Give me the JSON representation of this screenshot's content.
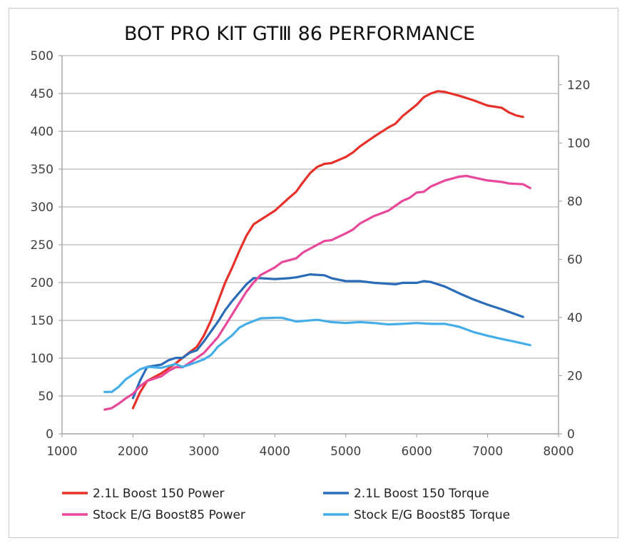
{
  "chart_data": {
    "type": "line",
    "title": "BOT PRO KIT GTⅢ 86 PERFORMANCE",
    "xlim": [
      1000,
      8000
    ],
    "xticks": [
      1000,
      2000,
      3000,
      4000,
      5000,
      6000,
      7000,
      8000
    ],
    "ylim_left": [
      0,
      500
    ],
    "yticks_left": [
      0,
      50,
      100,
      150,
      200,
      250,
      300,
      350,
      400,
      450,
      500
    ],
    "ylim_right": [
      0,
      130
    ],
    "yticks_right": [
      0,
      20,
      40,
      60,
      80,
      100,
      120
    ],
    "grid": true,
    "legend": "bottom",
    "series": [
      {
        "name": "2.1L Boost 150 Power",
        "axis": "left",
        "color": "#e8302a",
        "x": [
          2000,
          2100,
          2200,
          2400,
          2600,
          2800,
          2900,
          3000,
          3100,
          3200,
          3300,
          3400,
          3500,
          3600,
          3700,
          3800,
          4000,
          4200,
          4300,
          4400,
          4500,
          4600,
          4700,
          4800,
          5000,
          5100,
          5200,
          5400,
          5600,
          5700,
          5800,
          6000,
          6100,
          6200,
          6300,
          6400,
          6600,
          6800,
          7000,
          7200,
          7300,
          7400,
          7500
        ],
        "y": [
          34,
          55,
          70,
          80,
          93,
          108,
          115,
          130,
          150,
          175,
          200,
          220,
          242,
          262,
          277,
          283,
          295,
          312,
          320,
          333,
          345,
          353,
          357,
          358,
          366,
          372,
          380,
          393,
          405,
          410,
          420,
          435,
          445,
          450,
          453,
          452,
          447,
          441,
          434,
          431,
          425,
          421,
          419
        ]
      },
      {
        "name": "2.1L Boost 150 Torque",
        "axis": "right",
        "color": "#2b6cb8",
        "x": [
          2000,
          2100,
          2200,
          2400,
          2500,
          2600,
          2700,
          2800,
          2900,
          3000,
          3200,
          3300,
          3400,
          3600,
          3700,
          3800,
          4000,
          4200,
          4300,
          4500,
          4700,
          4800,
          5000,
          5200,
          5400,
          5700,
          5800,
          6000,
          6100,
          6200,
          6400,
          6600,
          6800,
          7000,
          7200,
          7500
        ],
        "y": [
          12.3,
          18.3,
          23,
          23.8,
          25.3,
          26.1,
          26.1,
          27.9,
          28.7,
          31.8,
          38.6,
          42.5,
          45.7,
          51.4,
          53.5,
          53.5,
          53.2,
          53.5,
          53.8,
          54.8,
          54.5,
          53.5,
          52.5,
          52.5,
          51.9,
          51.4,
          51.9,
          51.9,
          52.5,
          52.2,
          50.6,
          48.3,
          46.2,
          44.4,
          42.8,
          40.2
        ]
      },
      {
        "name": "Stock E/G Boost85 Power",
        "axis": "left",
        "color": "#e8489a",
        "x": [
          1600,
          1700,
          1800,
          1900,
          2000,
          2100,
          2200,
          2300,
          2400,
          2500,
          2600,
          2700,
          2800,
          3000,
          3200,
          3400,
          3600,
          3700,
          3800,
          4000,
          4100,
          4300,
          4400,
          4600,
          4700,
          4800,
          5000,
          5100,
          5200,
          5400,
          5600,
          5800,
          5900,
          6000,
          6100,
          6200,
          6400,
          6600,
          6700,
          6800,
          7000,
          7200,
          7300,
          7500,
          7600
        ],
        "y": [
          32,
          34,
          40,
          47,
          53,
          63,
          70,
          73,
          76,
          83,
          88,
          88,
          94,
          107,
          128,
          158,
          188,
          200,
          210,
          220,
          227,
          232,
          240,
          250,
          255,
          256,
          265,
          270,
          278,
          288,
          295,
          308,
          312,
          319,
          320,
          327,
          335,
          340,
          341,
          339,
          335,
          333,
          331,
          330,
          325
        ]
      },
      {
        "name": "Stock E/G Boost85 Torque",
        "axis": "right",
        "color": "#45aee8",
        "x": [
          1600,
          1700,
          1800,
          1900,
          2000,
          2100,
          2200,
          2400,
          2600,
          2700,
          2800,
          3000,
          3100,
          3200,
          3400,
          3500,
          3600,
          3800,
          4000,
          4100,
          4300,
          4600,
          4800,
          5000,
          5200,
          5400,
          5600,
          5800,
          6000,
          6200,
          6400,
          6600,
          6800,
          7000,
          7200,
          7400,
          7600
        ],
        "y": [
          14.4,
          14.4,
          16.2,
          18.8,
          20.4,
          22.2,
          23,
          22.7,
          24,
          23,
          23.8,
          25.6,
          27.1,
          30,
          33.9,
          36.5,
          37.8,
          39.7,
          39.9,
          39.9,
          38.6,
          39.2,
          38.4,
          38.1,
          38.4,
          38.1,
          37.6,
          37.8,
          38.1,
          37.8,
          37.8,
          36.8,
          35,
          33.7,
          32.6,
          31.6,
          30.5
        ]
      }
    ]
  }
}
